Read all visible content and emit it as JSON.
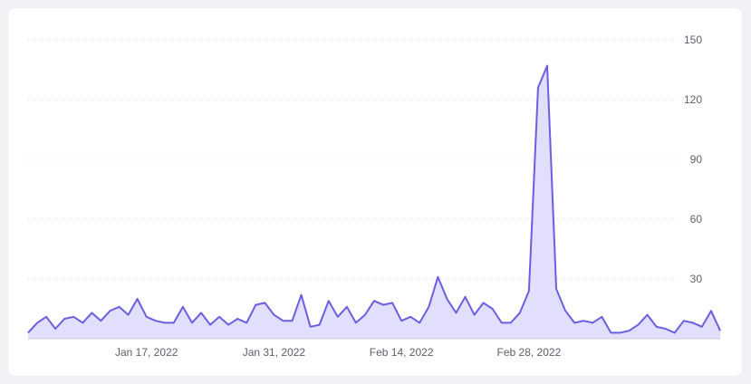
{
  "chart_data": {
    "type": "area",
    "x_label_dates": [
      "Jan 17, 2022",
      "Jan 31, 2022",
      "Feb 14, 2022",
      "Feb 28, 2022"
    ],
    "x_start": "2022-01-04",
    "x_end": "2022-03-20",
    "values": [
      3,
      8,
      11,
      5,
      10,
      11,
      8,
      13,
      9,
      14,
      16,
      12,
      20,
      11,
      9,
      8,
      8,
      16,
      8,
      13,
      7,
      11,
      7,
      10,
      8,
      17,
      18,
      12,
      9,
      9,
      22,
      6,
      7,
      19,
      11,
      16,
      8,
      12,
      19,
      17,
      18,
      9,
      11,
      8,
      16,
      31,
      20,
      13,
      21,
      12,
      18,
      15,
      8,
      8,
      13,
      24,
      126,
      137,
      25,
      14,
      8,
      9,
      8,
      11,
      3,
      3,
      4,
      7,
      12,
      6,
      5,
      3,
      9,
      8,
      6,
      14,
      4
    ],
    "y_ticks": [
      30,
      60,
      90,
      120,
      150
    ],
    "ylim": [
      0,
      150
    ],
    "grid": true,
    "colors": {
      "line": "#6a5fe0",
      "fill": "#e1dffb",
      "grid": "#d5d8de",
      "axis": "#c9ccd3"
    }
  }
}
